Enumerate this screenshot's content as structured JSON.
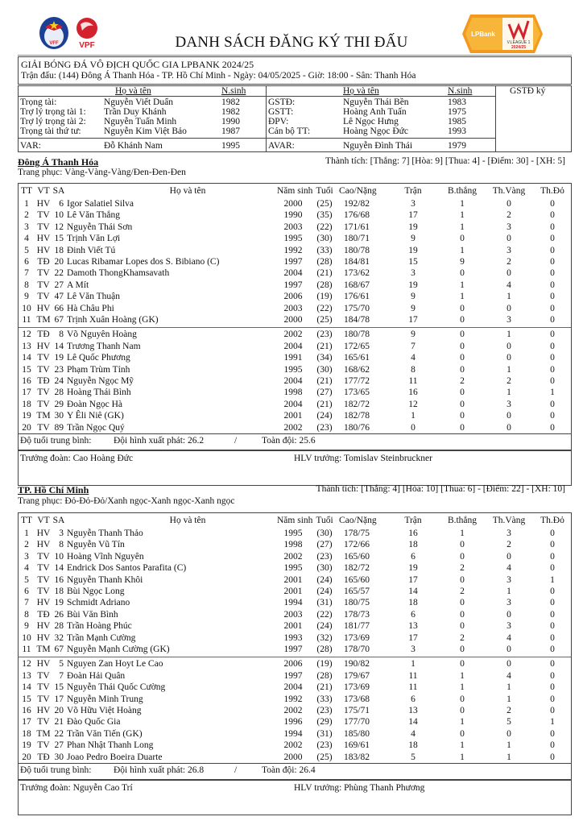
{
  "header": {
    "title": "DANH SÁCH ĐĂNG KÝ THI ĐẤU",
    "logos": {
      "vff": "VFF",
      "vpf": "VPF",
      "league": "LPBank V.LEAGUE 1 2024/25"
    },
    "competition": "GIẢI BÓNG ĐÁ VÔ ĐỊCH QUỐC GIA LPBANK 2024/25",
    "match_info": "Trận đấu: (144) Đông Á Thanh Hóa - TP. Hồ Chí Minh - Ngày: 04/05/2025 - Giờ: 18:00 - Sân: Thanh Hóa"
  },
  "officials": {
    "col_name": "Họ và tên",
    "col_year": "N.sinh",
    "col_sign": "GSTĐ ký",
    "left": [
      {
        "role": "Trọng tài:",
        "name": "Nguyễn Viết Duẩn",
        "year": "1982"
      },
      {
        "role": "Trợ lý trọng tài 1:",
        "name": "Trần Duy Khánh",
        "year": "1982"
      },
      {
        "role": "Trợ lý trọng tài 2:",
        "name": "Nguyễn Tuấn Minh",
        "year": "1990"
      },
      {
        "role": "Trọng tài thứ tư:",
        "name": "Nguyễn Kim Việt Bảo",
        "year": "1987"
      },
      {
        "role": "VAR:",
        "name": "Đỗ Khánh Nam",
        "year": "1995"
      }
    ],
    "right": [
      {
        "role": "GSTĐ:",
        "name": "Nguyễn Thái Bền",
        "year": "1983"
      },
      {
        "role": "GSTT:",
        "name": "Hoàng Anh Tuấn",
        "year": "1975"
      },
      {
        "role": "ĐPV:",
        "name": "Lê Ngọc Hưng",
        "year": "1985"
      },
      {
        "role": "Cán bộ TT:",
        "name": "Hoàng Ngọc Đức",
        "year": "1993"
      },
      {
        "role": "AVAR:",
        "name": "Nguyễn Đình Thái",
        "year": "1979"
      }
    ]
  },
  "columns": {
    "tt": "TT",
    "vt": "VT",
    "sa": "SA",
    "name": "Họ và tên",
    "year": "Năm sinh",
    "age": "Tuổi",
    "hw": "Cao/Nặng",
    "mp": "Trận",
    "goals": "B.thắng",
    "yc": "Th.Vàng",
    "rc": "Th.Đỏ"
  },
  "teams": [
    {
      "name": "Đông Á Thanh Hóa",
      "record": "Thành tích: [Thắng: 7] [Hòa: 9] [Thua: 4] - [Điểm: 30] - [XH: 5]",
      "kit": "Trang phục: Vàng-Vàng-Vàng/Đen-Đen-Đen",
      "avg_label": "Độ tuổi trung bình:",
      "avg_start": "Đội hình xuất phát: 26.2",
      "avg_sep": "/",
      "avg_all": "Toàn đội: 25.6",
      "manager": "Trưởng đoàn: Cao Hoàng Đức",
      "coach": "HLV trưởng: Tomislav Steinbruckner",
      "players": [
        {
          "tt": "1",
          "vt": "HV",
          "sa": "6",
          "name": "Igor Salatiel Silva",
          "year": "2000",
          "age": "(25)",
          "hw": "192/82",
          "mp": "3",
          "goals": "1",
          "yc": "0",
          "rc": "0"
        },
        {
          "tt": "2",
          "vt": "TV",
          "sa": "10",
          "name": "Lê Văn Thắng",
          "year": "1990",
          "age": "(35)",
          "hw": "176/68",
          "mp": "17",
          "goals": "1",
          "yc": "2",
          "rc": "0"
        },
        {
          "tt": "3",
          "vt": "TV",
          "sa": "12",
          "name": "Nguyễn Thái Sơn",
          "year": "2003",
          "age": "(22)",
          "hw": "171/61",
          "mp": "19",
          "goals": "1",
          "yc": "3",
          "rc": "0"
        },
        {
          "tt": "4",
          "vt": "HV",
          "sa": "15",
          "name": "Trịnh Văn Lợi",
          "year": "1995",
          "age": "(30)",
          "hw": "180/71",
          "mp": "9",
          "goals": "0",
          "yc": "0",
          "rc": "0"
        },
        {
          "tt": "5",
          "vt": "HV",
          "sa": "18",
          "name": "Đinh Viết Tú",
          "year": "1992",
          "age": "(33)",
          "hw": "180/78",
          "mp": "19",
          "goals": "1",
          "yc": "3",
          "rc": "0"
        },
        {
          "tt": "6",
          "vt": "TĐ",
          "sa": "20",
          "name": "Lucas Ribamar Lopes dos S. Bibiano (C)",
          "year": "1997",
          "age": "(28)",
          "hw": "184/81",
          "mp": "15",
          "goals": "9",
          "yc": "2",
          "rc": "0"
        },
        {
          "tt": "7",
          "vt": "TV",
          "sa": "22",
          "name": "Damoth ThongKhamsavath",
          "year": "2004",
          "age": "(21)",
          "hw": "173/62",
          "mp": "3",
          "goals": "0",
          "yc": "0",
          "rc": "0"
        },
        {
          "tt": "8",
          "vt": "TV",
          "sa": "27",
          "name": "A Mít",
          "year": "1997",
          "age": "(28)",
          "hw": "168/67",
          "mp": "19",
          "goals": "1",
          "yc": "4",
          "rc": "0"
        },
        {
          "tt": "9",
          "vt": "TV",
          "sa": "47",
          "name": "Lê Văn Thuận",
          "year": "2006",
          "age": "(19)",
          "hw": "176/61",
          "mp": "9",
          "goals": "1",
          "yc": "1",
          "rc": "0"
        },
        {
          "tt": "10",
          "vt": "HV",
          "sa": "66",
          "name": "Hà Châu Phi",
          "year": "2003",
          "age": "(22)",
          "hw": "175/70",
          "mp": "9",
          "goals": "0",
          "yc": "0",
          "rc": "0"
        },
        {
          "tt": "11",
          "vt": "TM",
          "sa": "67",
          "name": "Trịnh Xuân Hoàng (GK)",
          "year": "2000",
          "age": "(25)",
          "hw": "184/78",
          "mp": "17",
          "goals": "0",
          "yc": "3",
          "rc": "0"
        },
        {
          "tt": "12",
          "vt": "TĐ",
          "sa": "8",
          "name": "Võ Nguyên Hoàng",
          "year": "2002",
          "age": "(23)",
          "hw": "180/78",
          "mp": "9",
          "goals": "0",
          "yc": "1",
          "rc": "0"
        },
        {
          "tt": "13",
          "vt": "HV",
          "sa": "14",
          "name": "Trương Thanh Nam",
          "year": "2004",
          "age": "(21)",
          "hw": "172/65",
          "mp": "7",
          "goals": "0",
          "yc": "0",
          "rc": "0"
        },
        {
          "tt": "14",
          "vt": "TV",
          "sa": "19",
          "name": "Lê Quốc Phương",
          "year": "1991",
          "age": "(34)",
          "hw": "165/61",
          "mp": "4",
          "goals": "0",
          "yc": "0",
          "rc": "0"
        },
        {
          "tt": "15",
          "vt": "TV",
          "sa": "23",
          "name": "Phạm Trùm Tỉnh",
          "year": "1995",
          "age": "(30)",
          "hw": "168/62",
          "mp": "8",
          "goals": "0",
          "yc": "1",
          "rc": "0"
        },
        {
          "tt": "16",
          "vt": "TĐ",
          "sa": "24",
          "name": "Nguyễn Ngọc Mỹ",
          "year": "2004",
          "age": "(21)",
          "hw": "177/72",
          "mp": "11",
          "goals": "2",
          "yc": "2",
          "rc": "0"
        },
        {
          "tt": "17",
          "vt": "TV",
          "sa": "28",
          "name": "Hoàng Thái Bình",
          "year": "1998",
          "age": "(27)",
          "hw": "173/65",
          "mp": "16",
          "goals": "0",
          "yc": "1",
          "rc": "1"
        },
        {
          "tt": "18",
          "vt": "TV",
          "sa": "29",
          "name": "Đoàn Ngọc Hà",
          "year": "2004",
          "age": "(21)",
          "hw": "182/72",
          "mp": "12",
          "goals": "0",
          "yc": "3",
          "rc": "0"
        },
        {
          "tt": "19",
          "vt": "TM",
          "sa": "30",
          "name": "Y Êli Niê (GK)",
          "year": "2001",
          "age": "(24)",
          "hw": "182/78",
          "mp": "1",
          "goals": "0",
          "yc": "0",
          "rc": "0"
        },
        {
          "tt": "20",
          "vt": "TV",
          "sa": "89",
          "name": "Trần Ngọc Quý",
          "year": "2002",
          "age": "(23)",
          "hw": "180/76",
          "mp": "0",
          "goals": "0",
          "yc": "0",
          "rc": "0"
        }
      ]
    },
    {
      "name": "TP. Hồ Chí Minh",
      "record": "Thành tích: [Thắng: 4] [Hòa: 10] [Thua: 6] - [Điểm: 22] - [XH: 10]",
      "kit": "Trang phục: Đỏ-Đỏ-Đỏ/Xanh ngọc-Xanh ngọc-Xanh ngọc",
      "avg_label": "Độ tuổi trung bình:",
      "avg_start": "Đội hình xuất phát: 26.8",
      "avg_sep": "/",
      "avg_all": "Toàn đội: 26.4",
      "manager": "Trưởng đoàn: Nguyễn Cao Trí",
      "coach": "HLV trưởng: Phùng Thanh Phương",
      "players": [
        {
          "tt": "1",
          "vt": "HV",
          "sa": "3",
          "name": "Nguyễn Thanh Thảo",
          "year": "1995",
          "age": "(30)",
          "hw": "178/75",
          "mp": "16",
          "goals": "1",
          "yc": "3",
          "rc": "0"
        },
        {
          "tt": "2",
          "vt": "HV",
          "sa": "8",
          "name": "Nguyễn Vũ Tín",
          "year": "1998",
          "age": "(27)",
          "hw": "172/66",
          "mp": "18",
          "goals": "0",
          "yc": "2",
          "rc": "0"
        },
        {
          "tt": "3",
          "vt": "TV",
          "sa": "10",
          "name": "Hoàng Vĩnh Nguyên",
          "year": "2002",
          "age": "(23)",
          "hw": "165/60",
          "mp": "6",
          "goals": "0",
          "yc": "0",
          "rc": "0"
        },
        {
          "tt": "4",
          "vt": "TV",
          "sa": "14",
          "name": "Endrick Dos Santos Parafita  (C)",
          "year": "1995",
          "age": "(30)",
          "hw": "182/72",
          "mp": "19",
          "goals": "2",
          "yc": "4",
          "rc": "0"
        },
        {
          "tt": "5",
          "vt": "TV",
          "sa": "16",
          "name": "Nguyễn Thanh Khôi",
          "year": "2001",
          "age": "(24)",
          "hw": "165/60",
          "mp": "17",
          "goals": "0",
          "yc": "3",
          "rc": "1"
        },
        {
          "tt": "6",
          "vt": "TV",
          "sa": "18",
          "name": "Bùi Ngọc Long",
          "year": "2001",
          "age": "(24)",
          "hw": "165/57",
          "mp": "14",
          "goals": "2",
          "yc": "1",
          "rc": "0"
        },
        {
          "tt": "7",
          "vt": "HV",
          "sa": "19",
          "name": "Schmidt Adriano",
          "year": "1994",
          "age": "(31)",
          "hw": "180/75",
          "mp": "18",
          "goals": "0",
          "yc": "3",
          "rc": "0"
        },
        {
          "tt": "8",
          "vt": "TĐ",
          "sa": "26",
          "name": "Bùi Văn Bình",
          "year": "2003",
          "age": "(22)",
          "hw": "178/73",
          "mp": "6",
          "goals": "0",
          "yc": "0",
          "rc": "0"
        },
        {
          "tt": "9",
          "vt": "HV",
          "sa": "28",
          "name": "Trần Hoàng Phúc",
          "year": "2001",
          "age": "(24)",
          "hw": "181/77",
          "mp": "13",
          "goals": "0",
          "yc": "3",
          "rc": "0"
        },
        {
          "tt": "10",
          "vt": "HV",
          "sa": "32",
          "name": "Trần Mạnh Cường",
          "year": "1993",
          "age": "(32)",
          "hw": "173/69",
          "mp": "17",
          "goals": "2",
          "yc": "4",
          "rc": "0"
        },
        {
          "tt": "11",
          "vt": "TM",
          "sa": "67",
          "name": "Nguyễn Mạnh Cường (GK)",
          "year": "1997",
          "age": "(28)",
          "hw": "178/70",
          "mp": "3",
          "goals": "0",
          "yc": "0",
          "rc": "0"
        },
        {
          "tt": "12",
          "vt": "HV",
          "sa": "5",
          "name": "Nguyen Zan Hoyt Le Cao",
          "year": "2006",
          "age": "(19)",
          "hw": "190/82",
          "mp": "1",
          "goals": "0",
          "yc": "0",
          "rc": "0"
        },
        {
          "tt": "13",
          "vt": "TV",
          "sa": "7",
          "name": "Đoàn Hải Quân",
          "year": "1997",
          "age": "(28)",
          "hw": "179/67",
          "mp": "11",
          "goals": "1",
          "yc": "4",
          "rc": "0"
        },
        {
          "tt": "14",
          "vt": "TV",
          "sa": "15",
          "name": "Nguyễn Thái Quốc Cường",
          "year": "2004",
          "age": "(21)",
          "hw": "173/69",
          "mp": "11",
          "goals": "1",
          "yc": "1",
          "rc": "0"
        },
        {
          "tt": "15",
          "vt": "TV",
          "sa": "17",
          "name": "Nguyễn Minh Trung",
          "year": "1992",
          "age": "(33)",
          "hw": "173/68",
          "mp": "6",
          "goals": "0",
          "yc": "1",
          "rc": "0"
        },
        {
          "tt": "16",
          "vt": "HV",
          "sa": "20",
          "name": "Võ Hữu Việt Hoàng",
          "year": "2002",
          "age": "(23)",
          "hw": "175/71",
          "mp": "13",
          "goals": "0",
          "yc": "2",
          "rc": "0"
        },
        {
          "tt": "17",
          "vt": "TV",
          "sa": "21",
          "name": "Đào Quốc Gia",
          "year": "1996",
          "age": "(29)",
          "hw": "177/70",
          "mp": "14",
          "goals": "1",
          "yc": "5",
          "rc": "1"
        },
        {
          "tt": "18",
          "vt": "TM",
          "sa": "22",
          "name": "Trần Văn Tiến (GK)",
          "year": "1994",
          "age": "(31)",
          "hw": "185/80",
          "mp": "4",
          "goals": "0",
          "yc": "0",
          "rc": "0"
        },
        {
          "tt": "19",
          "vt": "TV",
          "sa": "27",
          "name": "Phan Nhật Thanh Long",
          "year": "2002",
          "age": "(23)",
          "hw": "169/61",
          "mp": "18",
          "goals": "1",
          "yc": "1",
          "rc": "0"
        },
        {
          "tt": "20",
          "vt": "TĐ",
          "sa": "30",
          "name": "Joao Pedro Boeira Duarte",
          "year": "2000",
          "age": "(25)",
          "hw": "183/82",
          "mp": "5",
          "goals": "1",
          "yc": "1",
          "rc": "0"
        }
      ]
    }
  ]
}
